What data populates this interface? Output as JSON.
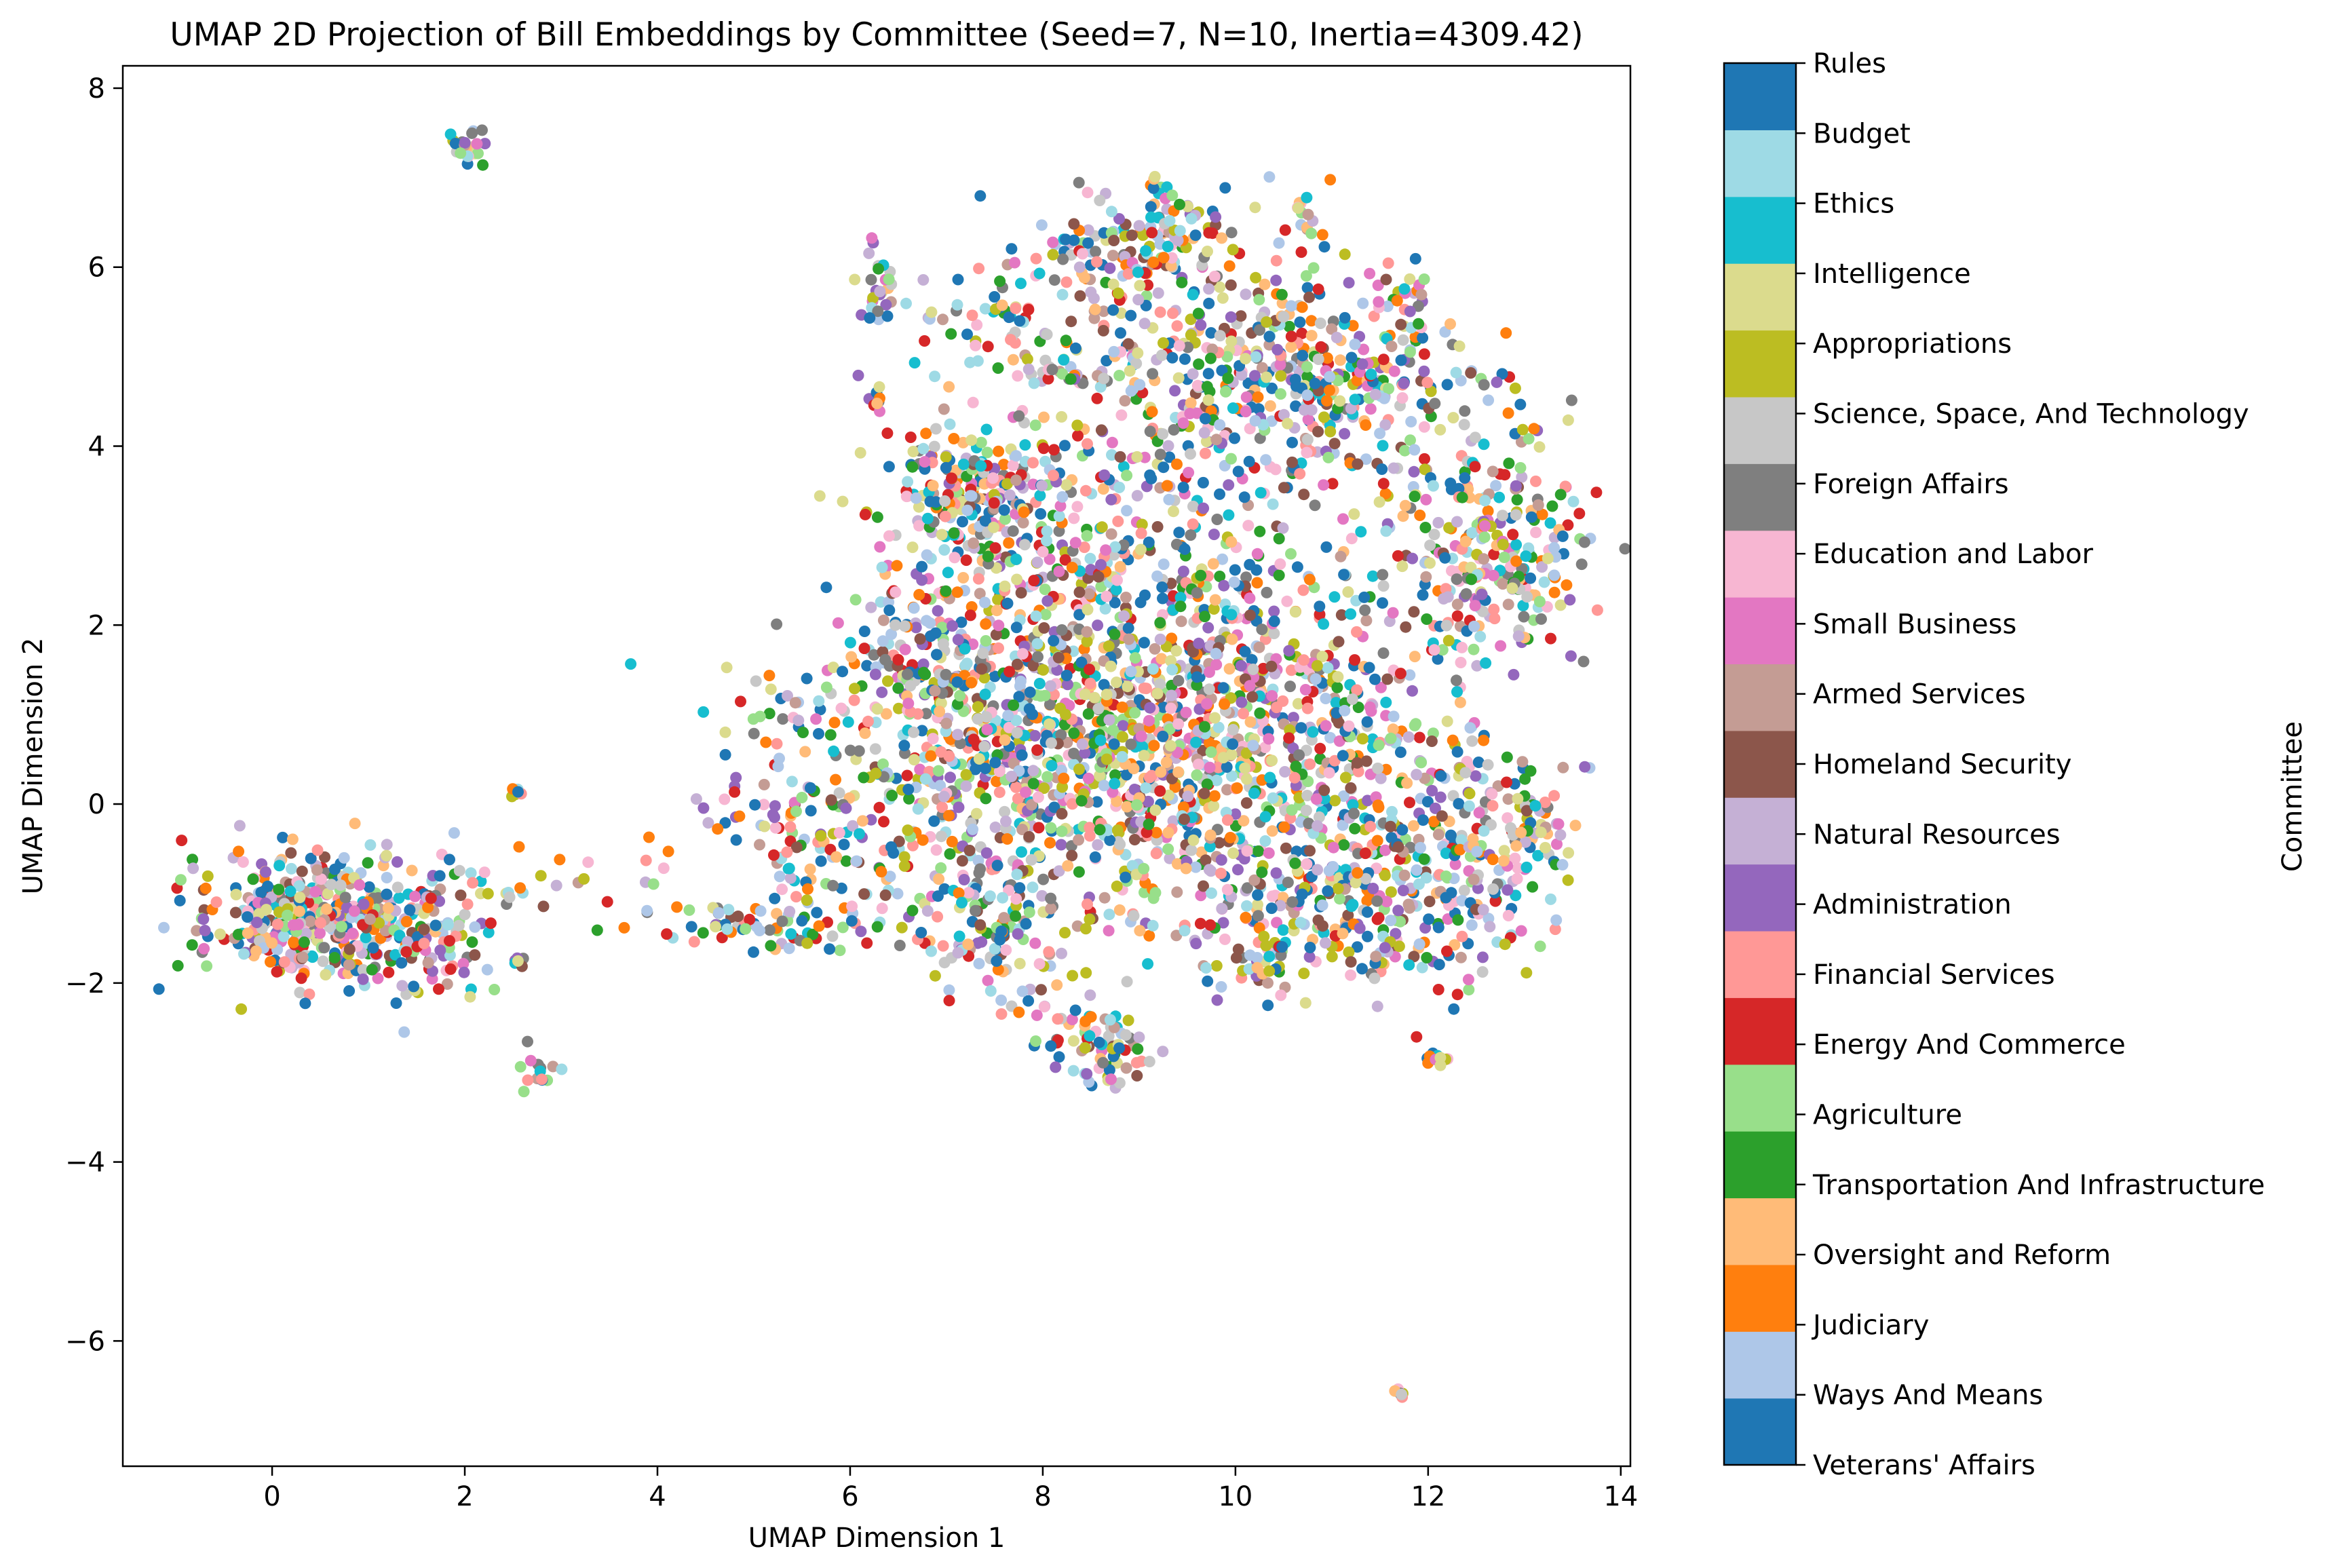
{
  "chart_data": {
    "type": "scatter",
    "title": "UMAP 2D Projection of Bill Embeddings by Committee (Seed=7, N=10, Inertia=4309.42)",
    "xlabel": "UMAP Dimension 1",
    "ylabel": "UMAP Dimension 2",
    "xlim": [
      -1.55,
      14.1
    ],
    "ylim": [
      -7.4,
      8.25
    ],
    "x_ticks": [
      0,
      2,
      4,
      6,
      8,
      10,
      12,
      14
    ],
    "y_ticks": [
      -6,
      -4,
      -2,
      0,
      2,
      4,
      6,
      8
    ],
    "grid": false,
    "colorbar": {
      "label": "Committee",
      "position": "right",
      "categories": [
        {
          "name": "Veterans' Affairs",
          "color": "#1f77b4"
        },
        {
          "name": "Ways And Means",
          "color": "#aec7e8"
        },
        {
          "name": "Judiciary",
          "color": "#ff7f0e"
        },
        {
          "name": "Oversight and Reform",
          "color": "#ffbb78"
        },
        {
          "name": "Transportation And Infrastructure",
          "color": "#2ca02c"
        },
        {
          "name": "Agriculture",
          "color": "#98df8a"
        },
        {
          "name": "Energy And Commerce",
          "color": "#d62728"
        },
        {
          "name": "Financial Services",
          "color": "#ff9896"
        },
        {
          "name": "Administration",
          "color": "#9467bd"
        },
        {
          "name": "Natural Resources",
          "color": "#c5b0d5"
        },
        {
          "name": "Homeland Security",
          "color": "#8c564b"
        },
        {
          "name": "Armed Services",
          "color": "#c49c94"
        },
        {
          "name": "Small Business",
          "color": "#e377c2"
        },
        {
          "name": "Education and Labor",
          "color": "#f7b6d2"
        },
        {
          "name": "Foreign Affairs",
          "color": "#7f7f7f"
        },
        {
          "name": "Science, Space, And Technology",
          "color": "#c7c7c7"
        },
        {
          "name": "Appropriations",
          "color": "#bcbd22"
        },
        {
          "name": "Intelligence",
          "color": "#dbdb8d"
        },
        {
          "name": "Ethics",
          "color": "#17becf"
        },
        {
          "name": "Budget",
          "color": "#9edae5"
        },
        {
          "name": "Rules",
          "color": "#1f77b4"
        }
      ]
    },
    "clusters": [
      {
        "cx": 0.5,
        "cy": -1.3,
        "sx": 0.7,
        "sy": 0.38,
        "n": 420
      },
      {
        "cx": 1.7,
        "cy": -1.5,
        "sx": 0.35,
        "sy": 0.3,
        "n": 70
      },
      {
        "cx": 2.3,
        "cy": -1.0,
        "sx": 0.3,
        "sy": 0.3,
        "n": 18
      },
      {
        "cx": 2.05,
        "cy": 7.35,
        "sx": 0.12,
        "sy": 0.1,
        "n": 22
      },
      {
        "cx": 2.8,
        "cy": -3.0,
        "sx": 0.1,
        "sy": 0.15,
        "n": 14
      },
      {
        "cx": 2.55,
        "cy": 0.1,
        "sx": 0.05,
        "sy": 0.05,
        "n": 6
      },
      {
        "cx": 2.65,
        "cy": -1.8,
        "sx": 0.08,
        "sy": 0.05,
        "n": 6
      },
      {
        "cx": 3.7,
        "cy": -0.8,
        "sx": 0.4,
        "sy": 0.3,
        "n": 10
      },
      {
        "cx": 4.7,
        "cy": -1.35,
        "sx": 0.5,
        "sy": 0.15,
        "n": 35
      },
      {
        "cx": 5.5,
        "cy": -1.3,
        "sx": 0.5,
        "sy": 0.2,
        "n": 45
      },
      {
        "cx": 5.1,
        "cy": -0.1,
        "sx": 0.45,
        "sy": 0.25,
        "n": 35
      },
      {
        "cx": 5.5,
        "cy": 1.0,
        "sx": 0.35,
        "sy": 0.3,
        "n": 30
      },
      {
        "cx": 6.0,
        "cy": -0.5,
        "sx": 0.5,
        "sy": 0.4,
        "n": 70
      },
      {
        "cx": 7.5,
        "cy": 0.7,
        "sx": 1.0,
        "sy": 0.9,
        "n": 500
      },
      {
        "cx": 9.0,
        "cy": 0.8,
        "sx": 1.1,
        "sy": 1.0,
        "n": 650
      },
      {
        "cx": 10.6,
        "cy": 0.6,
        "sx": 1.0,
        "sy": 1.0,
        "n": 520
      },
      {
        "cx": 8.3,
        "cy": 2.8,
        "sx": 1.1,
        "sy": 0.9,
        "n": 330
      },
      {
        "cx": 7.3,
        "cy": 3.5,
        "sx": 0.4,
        "sy": 0.3,
        "n": 160
      },
      {
        "cx": 9.8,
        "cy": 4.8,
        "sx": 0.9,
        "sy": 0.8,
        "n": 380
      },
      {
        "cx": 11.2,
        "cy": 4.6,
        "sx": 0.6,
        "sy": 0.5,
        "n": 140
      },
      {
        "cx": 11.8,
        "cy": 5.35,
        "sx": 0.2,
        "sy": 0.3,
        "n": 40
      },
      {
        "cx": 12.5,
        "cy": 3.3,
        "sx": 0.55,
        "sy": 0.8,
        "n": 180
      },
      {
        "cx": 12.9,
        "cy": 2.6,
        "sx": 0.3,
        "sy": 0.5,
        "n": 100
      },
      {
        "cx": 12.2,
        "cy": -0.8,
        "sx": 0.6,
        "sy": 0.6,
        "n": 200
      },
      {
        "cx": 13.0,
        "cy": -0.2,
        "sx": 0.25,
        "sy": 0.3,
        "n": 50
      },
      {
        "cx": 11.0,
        "cy": -1.2,
        "sx": 0.7,
        "sy": 0.4,
        "n": 160
      },
      {
        "cx": 7.5,
        "cy": -1.4,
        "sx": 0.45,
        "sy": 0.45,
        "n": 120
      },
      {
        "cx": 8.7,
        "cy": -2.75,
        "sx": 0.2,
        "sy": 0.2,
        "n": 60
      },
      {
        "cx": 10.3,
        "cy": -1.8,
        "sx": 0.15,
        "sy": 0.2,
        "n": 22
      },
      {
        "cx": 6.3,
        "cy": 5.7,
        "sx": 0.1,
        "sy": 0.25,
        "n": 28
      },
      {
        "cx": 7.5,
        "cy": 5.5,
        "sx": 0.4,
        "sy": 0.3,
        "n": 50
      },
      {
        "cx": 8.8,
        "cy": 6.2,
        "sx": 0.5,
        "sy": 0.3,
        "n": 110
      },
      {
        "cx": 9.35,
        "cy": 6.6,
        "sx": 0.15,
        "sy": 0.25,
        "n": 30
      },
      {
        "cx": 10.7,
        "cy": 6.5,
        "sx": 0.06,
        "sy": 0.15,
        "n": 12
      },
      {
        "cx": 12.1,
        "cy": -2.85,
        "sx": 0.06,
        "sy": 0.06,
        "n": 10
      },
      {
        "cx": 11.7,
        "cy": -6.6,
        "sx": 0.04,
        "sy": 0.04,
        "n": 6
      },
      {
        "cx": 6.3,
        "cy": 4.5,
        "sx": 0.05,
        "sy": 0.1,
        "n": 8
      },
      {
        "cx": 8.3,
        "cy": 4.8,
        "sx": 0.2,
        "sy": 0.08,
        "n": 20
      },
      {
        "cx": 6.7,
        "cy": 1.8,
        "sx": 0.4,
        "sy": 0.4,
        "n": 70
      },
      {
        "cx": 8.2,
        "cy": -2.5,
        "sx": 0.2,
        "sy": 0.15,
        "n": 20
      }
    ]
  }
}
